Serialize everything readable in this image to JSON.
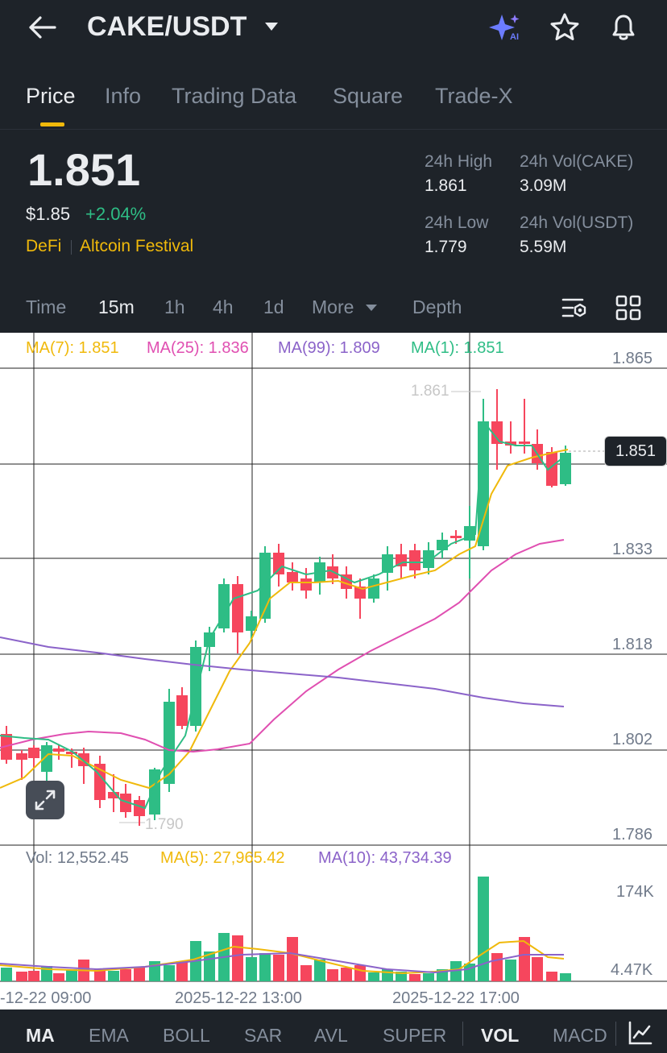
{
  "header": {
    "pair": "CAKE/USDT",
    "icons": [
      "back-arrow-icon",
      "caret-down-icon",
      "ai-sparkle-icon",
      "star-icon",
      "bell-icon"
    ]
  },
  "tabs": [
    {
      "label": "Price",
      "active": true
    },
    {
      "label": "Info",
      "active": false
    },
    {
      "label": "Trading Data",
      "active": false
    },
    {
      "label": "Square",
      "active": false
    },
    {
      "label": "Trade-X",
      "active": false
    }
  ],
  "ticker": {
    "last_price": "1.851",
    "usd_price": "$1.85",
    "change": "+2.04%",
    "tag1": "DeFi",
    "tag2": "Altcoin Festival",
    "high_label": "24h High",
    "high_value": "1.861",
    "low_label": "24h Low",
    "low_value": "1.779",
    "vol_base_label": "24h Vol(CAKE)",
    "vol_base_value": "3.09M",
    "vol_quote_label": "24h Vol(USDT)",
    "vol_quote_value": "5.59M"
  },
  "timeframes": {
    "time": "Time",
    "m15": "15m",
    "h1": "1h",
    "h4": "4h",
    "d1": "1d",
    "more": "More",
    "depth": "Depth"
  },
  "chart_data": {
    "type": "candlestick",
    "ma_legend": {
      "ma7": "MA(7): 1.851",
      "ma25": "MA(25): 1.836",
      "ma99": "MA(99): 1.809",
      "ma1": "MA(1): 1.851"
    },
    "price_ticks": [
      "1.865",
      "1.851",
      "1.833",
      "1.818",
      "1.802",
      "1.786"
    ],
    "high_marker": "1.861",
    "low_marker": "1.790",
    "vol_legend": {
      "vol": "Vol: 12,552.45",
      "ma5": "MA(5): 27,965.42",
      "ma10": "MA(10): 43,734.39"
    },
    "vol_ticks": [
      "174K",
      "4.47K"
    ],
    "time_labels": [
      "-12-22 09:00",
      "2025-12-22 13:00",
      "2025-12-22 17:00"
    ],
    "colors": {
      "up": "#2ebd85",
      "down": "#f6465d",
      "ma7": "#f0b90b",
      "ma25": "#e04fb1",
      "ma99": "#8b63c9"
    }
  },
  "indicators": [
    "MA",
    "EMA",
    "BOLL",
    "SAR",
    "AVL",
    "SUPER",
    "VOL",
    "MACD"
  ]
}
